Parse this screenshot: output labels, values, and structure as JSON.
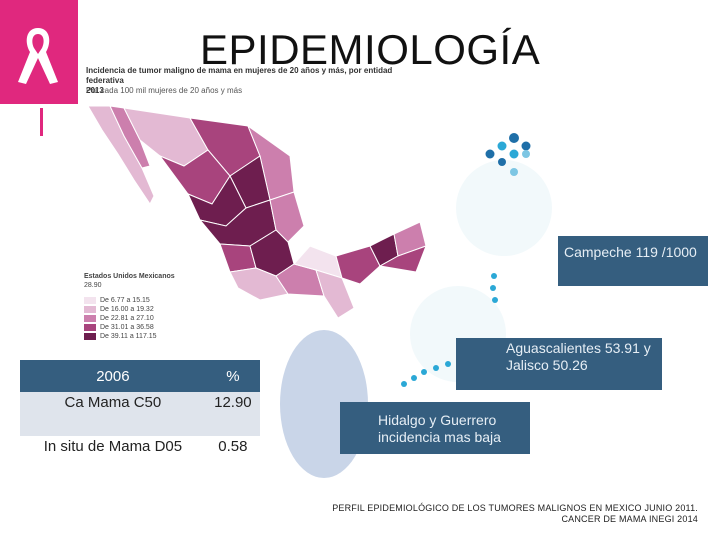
{
  "title": "EPIDEMIOLOGÍA",
  "map": {
    "caption_line1": "Incidencia de tumor maligno de mama en mujeres de 20 años y más, por entidad federativa",
    "caption_line2": "2013",
    "caption_line3": "Por cada 100 mil mujeres de 20 años y más",
    "legend_title": "Estados Unidos Mexicanos",
    "legend_value": "28.90",
    "legend_items": [
      {
        "label": "De 6.77 a 15.15",
        "color": "#f3e3ee"
      },
      {
        "label": "De 16.00 a 19.32",
        "color": "#e3b9d3"
      },
      {
        "label": "De 22.81 a 27.10",
        "color": "#cc7fad"
      },
      {
        "label": "De 31.01 a 36.58",
        "color": "#a8447d"
      },
      {
        "label": "De 39.11 a 117.15",
        "color": "#6e1e4f"
      }
    ]
  },
  "table": {
    "headers": [
      "2006",
      "%"
    ],
    "rows": [
      [
        "Ca Mama C50",
        "12.90"
      ],
      [
        "In situ de Mama D05",
        "0.58"
      ]
    ]
  },
  "callouts": {
    "campeche": "Campeche 119 /1000",
    "aguascalientes": "Aguascalientes 53.91 y  Jalisco 50.26",
    "hidalgo": "Hidalgo y Guerrero incidencia mas baja"
  },
  "footer": {
    "line1": "PERFIL EPIDEMIOLÓGICO DE LOS TUMORES MALIGNOS EN MEXICO JUNIO 2011.",
    "line2": "CANCER DE MAMA INEGI 2014"
  },
  "colors": {
    "accent_pink": "#e0287e",
    "callout_blue": "#355e7f",
    "dot_blue": "#2ba8d6"
  },
  "icons": [
    "pink-ribbon-icon"
  ]
}
